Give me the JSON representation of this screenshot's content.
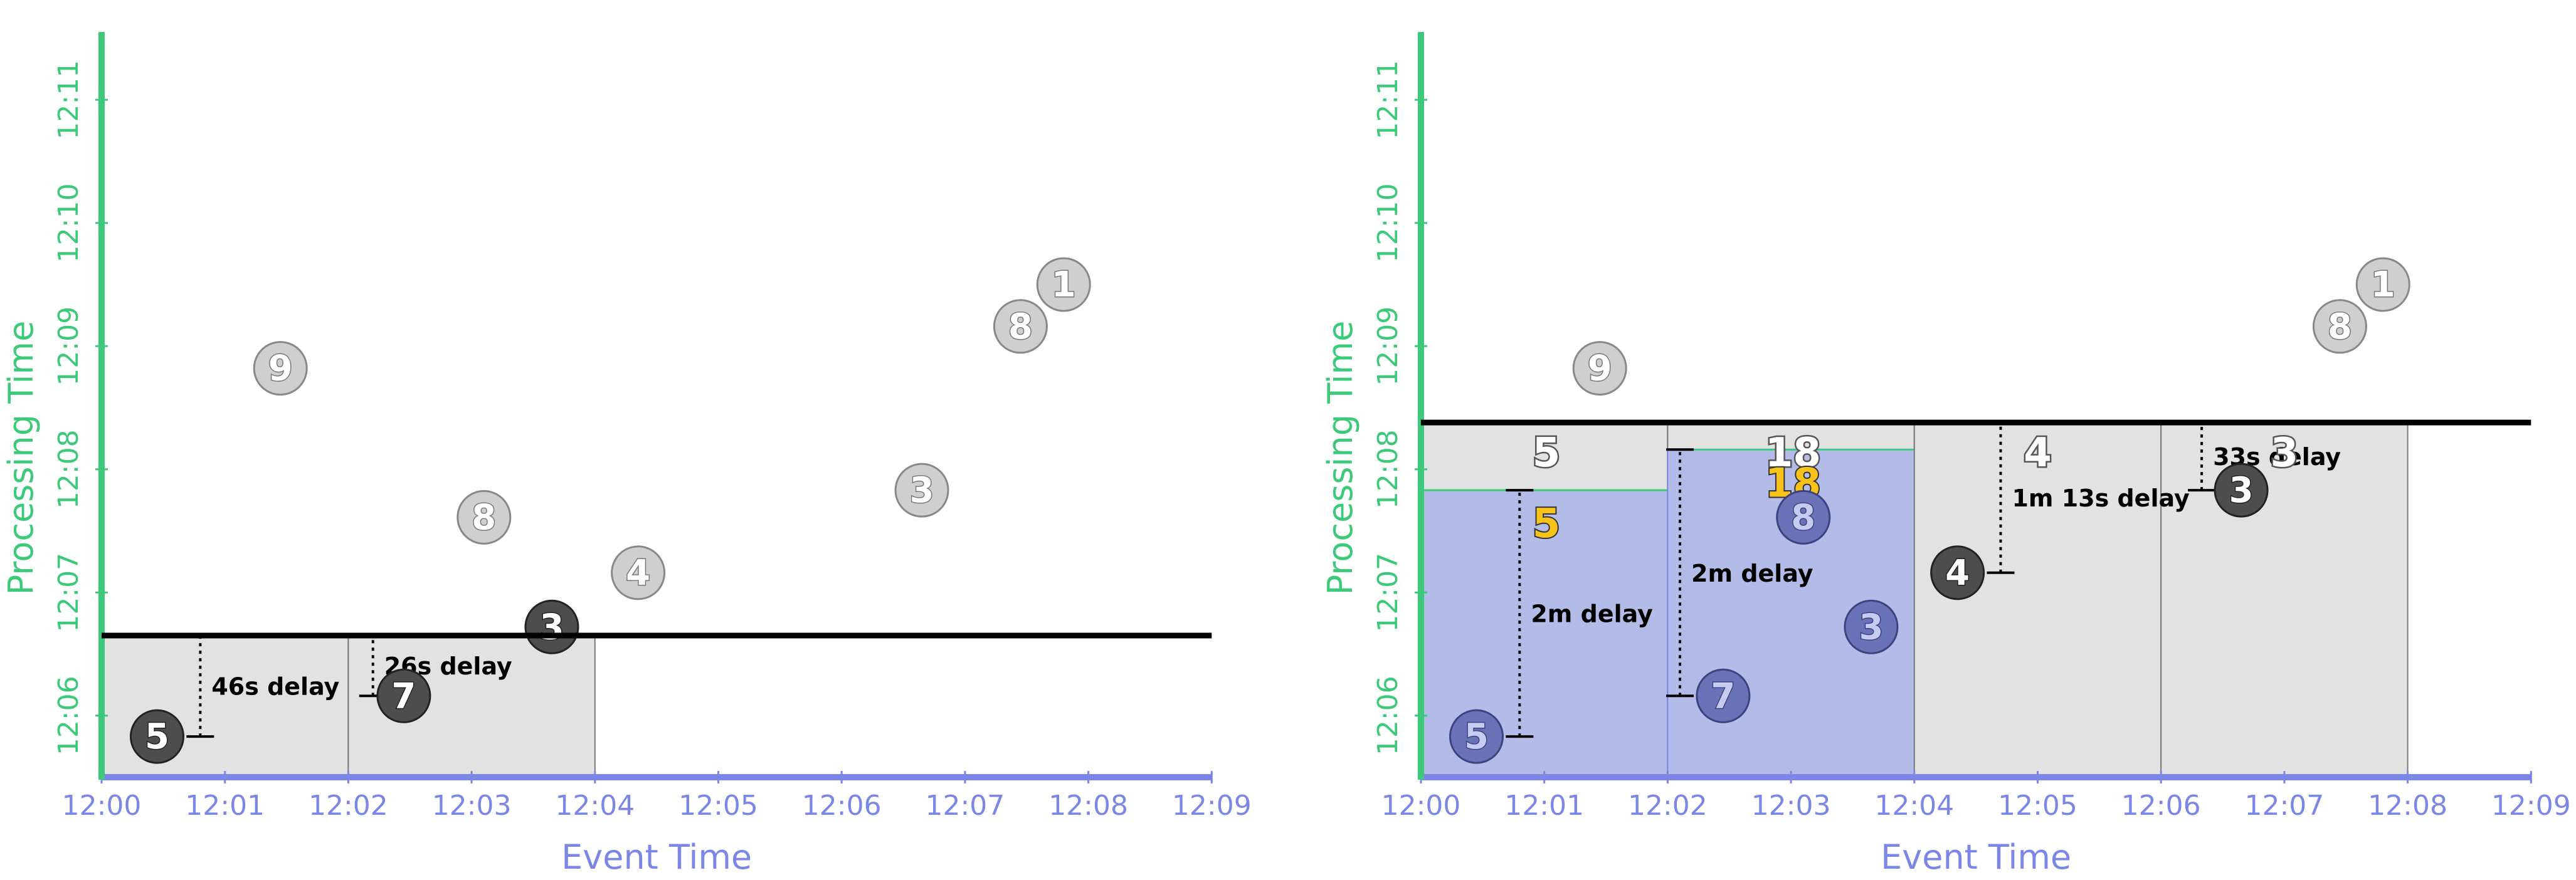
{
  "colors": {
    "processing_axis": "#3cc97a",
    "event_axis": "#7b86e6",
    "axis_label": "#3cc97a",
    "event_label": "#7b86e6",
    "watermark": "#000000",
    "window_fill": "#e2e2e2",
    "window_border": "#7a7a7a",
    "fired_fill": "#b3bbe9",
    "fired_border": "#7b86e6",
    "datum_late": "#cfcfcf",
    "datum_dark": "#4d4d4d",
    "datum_blue": "#6b73b8",
    "result_yellow": "#f7c21c",
    "result_outline": "#555555"
  },
  "chart_data": [
    {
      "type": "scatter",
      "xlabel": "Event Time",
      "ylabel": "Processing Time",
      "xticks": [
        "12:00",
        "12:01",
        "12:02",
        "12:03",
        "12:04",
        "12:05",
        "12:06",
        "12:07",
        "12:08",
        "12:09"
      ],
      "yticks": [
        "12:06",
        "12:07",
        "12:08",
        "12:09",
        "12:10",
        "12:11"
      ],
      "xlim": [
        0,
        9
      ],
      "ylim_minutes_after_12_05": [
        0,
        6
      ],
      "watermark_minute": 1.15,
      "windows": [
        {
          "x0": 0,
          "x1": 2,
          "fired": false,
          "fire_y": null
        },
        {
          "x0": 2,
          "x1": 4,
          "fired": false,
          "fire_y": null
        }
      ],
      "points": [
        {
          "label": "9",
          "x": 1.45,
          "y": 3.32,
          "style": "late"
        },
        {
          "label": "8",
          "x": 3.1,
          "y": 2.11,
          "style": "late"
        },
        {
          "label": "4",
          "x": 4.35,
          "y": 1.66,
          "style": "late"
        },
        {
          "label": "3",
          "x": 3.65,
          "y": 1.22,
          "style": "dark"
        },
        {
          "label": "3",
          "x": 6.65,
          "y": 2.33,
          "style": "late"
        },
        {
          "label": "8",
          "x": 7.45,
          "y": 3.66,
          "style": "late"
        },
        {
          "label": "1",
          "x": 7.8,
          "y": 4.0,
          "style": "late"
        },
        {
          "label": "5",
          "x": 0.45,
          "y": 0.33,
          "style": "dark"
        },
        {
          "label": "7",
          "x": 2.45,
          "y": 0.66,
          "style": "dark"
        }
      ],
      "delays": [
        {
          "x": 0.8,
          "y_from": 0.33,
          "label": "46s delay",
          "glyph": "5"
        },
        {
          "x": 2.2,
          "y_from": 0.66,
          "label": "26s delay",
          "glyph": "7"
        }
      ]
    },
    {
      "type": "scatter",
      "xlabel": "Event Time",
      "ylabel": "Processing Time",
      "xticks": [
        "12:00",
        "12:01",
        "12:02",
        "12:03",
        "12:04",
        "12:05",
        "12:06",
        "12:07",
        "12:08",
        "12:09"
      ],
      "yticks": [
        "12:06",
        "12:07",
        "12:08",
        "12:09",
        "12:10",
        "12:11"
      ],
      "xlim": [
        0,
        9
      ],
      "ylim_minutes_after_12_05": [
        0,
        6
      ],
      "watermark_minute": 2.88,
      "windows": [
        {
          "x0": 0,
          "x1": 2,
          "fired": true,
          "fire_y": 2.33,
          "result": "5",
          "pending": "5"
        },
        {
          "x0": 2,
          "x1": 4,
          "fired": true,
          "fire_y": 2.66,
          "result": "18",
          "pending": "18"
        },
        {
          "x0": 4,
          "x1": 6,
          "fired": false,
          "fire_y": null,
          "pending": "4"
        },
        {
          "x0": 6,
          "x1": 8,
          "fired": false,
          "fire_y": null,
          "pending": "3"
        }
      ],
      "points": [
        {
          "label": "9",
          "x": 1.45,
          "y": 3.32,
          "style": "late"
        },
        {
          "label": "8",
          "x": 7.45,
          "y": 3.66,
          "style": "late"
        },
        {
          "label": "1",
          "x": 7.8,
          "y": 4.0,
          "style": "late"
        },
        {
          "label": "5",
          "x": 0.45,
          "y": 0.33,
          "style": "blue"
        },
        {
          "label": "7",
          "x": 2.45,
          "y": 0.66,
          "style": "blue"
        },
        {
          "label": "8",
          "x": 3.1,
          "y": 2.11,
          "style": "blue"
        },
        {
          "label": "3",
          "x": 3.65,
          "y": 1.22,
          "style": "blue"
        },
        {
          "label": "4",
          "x": 4.35,
          "y": 1.66,
          "style": "dark"
        },
        {
          "label": "3",
          "x": 6.65,
          "y": 2.33,
          "style": "dark"
        }
      ],
      "delays": [
        {
          "x": 0.8,
          "y_from": 0.33,
          "y_to": 2.33,
          "label": "2m  delay"
        },
        {
          "x": 2.1,
          "y_from": 0.66,
          "y_to": 2.66,
          "label": "2m  delay"
        },
        {
          "x": 4.7,
          "y_from": 1.66,
          "y_to": 2.88,
          "label": "1m 13s delay"
        },
        {
          "x": 6.33,
          "y_from": 2.33,
          "y_to": 2.88,
          "label": "33s delay"
        }
      ]
    }
  ]
}
